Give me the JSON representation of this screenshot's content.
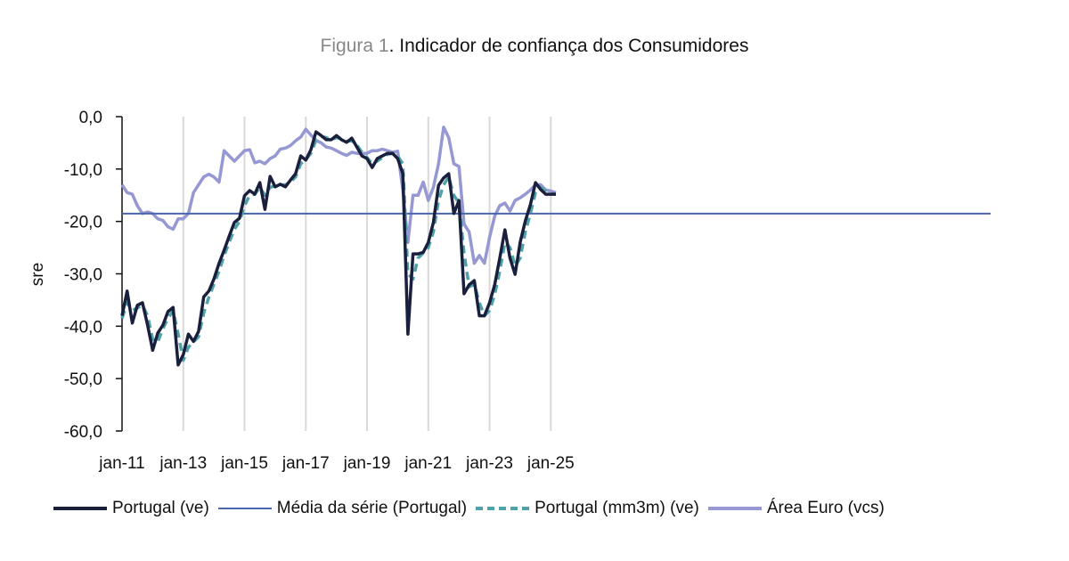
{
  "title": {
    "prefix": "Figura 1",
    "text": ". Indicador de confiança dos Consumidores"
  },
  "chart_data": {
    "type": "line",
    "title": "Figura 1. Indicador de confiança dos Consumidores",
    "xlabel": "",
    "ylabel": "sre",
    "ylim": [
      -60,
      0
    ],
    "yticks": [
      0,
      -10,
      -20,
      -30,
      -40,
      -50,
      -60
    ],
    "ytick_labels": [
      "0,0",
      "-10,0",
      "-20,0",
      "-30,0",
      "-40,0",
      "-50,0",
      "-60,0"
    ],
    "xticks": [
      "jan-11",
      "jan-13",
      "jan-15",
      "jan-17",
      "jan-19",
      "jan-21",
      "jan-23",
      "jan-25"
    ],
    "x_start": "jan-11",
    "x_step_months": 2,
    "grid": "vertical",
    "legend_position": "bottom",
    "series": [
      {
        "name": "Portugal (ve)",
        "color": "#1a1f3d",
        "style": "solid",
        "values": [
          -38,
          -33.3,
          -39.4,
          -36,
          -35.5,
          -39.8,
          -44.6,
          -41.3,
          -39.8,
          -37.2,
          -36.4,
          -47.4,
          -45.4,
          -41.5,
          -42.9,
          -41,
          -34.4,
          -33.3,
          -31,
          -28,
          -25.5,
          -22.8,
          -20.2,
          -19.4,
          -15.1,
          -14.1,
          -14.8,
          -12.6,
          -17.7,
          -11.4,
          -13.4,
          -12.9,
          -13.4,
          -12.1,
          -10.9,
          -7.5,
          -8.3,
          -6.3,
          -2.9,
          -3.6,
          -4.4,
          -4.4,
          -3.6,
          -4.4,
          -4.9,
          -4.1,
          -5.8,
          -7.5,
          -8,
          -9.7,
          -8,
          -7.5,
          -7,
          -7,
          -8,
          -10.9,
          -41.5,
          -26.2,
          -26.2,
          -25.9,
          -24,
          -20.2,
          -13.1,
          -11.7,
          -10.9,
          -18.5,
          -16,
          -33.8,
          -32.1,
          -31.3,
          -38,
          -38,
          -35.5,
          -32.1,
          -27,
          -21.6,
          -27,
          -30.1,
          -24,
          -19.9,
          -16.8,
          -12.6,
          -13.9,
          -14.8,
          -14.8,
          -14.8
        ]
      },
      {
        "name": "Média da série (Portugal)",
        "color": "#4a66ac",
        "style": "solid",
        "constant": -18.5
      },
      {
        "name": "Portugal (mm3m) (ve)",
        "color": "#4ea3a8",
        "style": "dashed",
        "values": [
          -38.5,
          -35.5,
          -37,
          -36.5,
          -36,
          -38,
          -42.5,
          -43,
          -40.5,
          -38.5,
          -37,
          -41.5,
          -46.5,
          -44,
          -43,
          -42,
          -37.5,
          -34.5,
          -32,
          -29.5,
          -26.5,
          -24,
          -21.5,
          -20,
          -17,
          -15,
          -14.8,
          -13.5,
          -15,
          -13.5,
          -13.2,
          -13,
          -13,
          -12.5,
          -11.5,
          -9,
          -8.2,
          -7,
          -4.5,
          -3.8,
          -4,
          -4.4,
          -4,
          -4.3,
          -4.7,
          -4.6,
          -5.4,
          -6.8,
          -7.8,
          -9,
          -8.5,
          -7.8,
          -7.2,
          -7,
          -7.5,
          -9,
          -30,
          -31,
          -27,
          -26,
          -25,
          -22,
          -16,
          -13,
          -11.5,
          -15,
          -16.5,
          -26,
          -32.5,
          -32,
          -35.5,
          -38,
          -37,
          -34,
          -29.5,
          -24,
          -25,
          -28.5,
          -27,
          -22,
          -18.5,
          -14.5,
          -13.5,
          -14.2,
          -14.7,
          -14.8
        ]
      },
      {
        "name": "Área Euro (vcs)",
        "color": "#9598d2",
        "style": "solid",
        "values": [
          -13,
          -14.5,
          -14.8,
          -17,
          -18.5,
          -18.2,
          -18.5,
          -19.5,
          -19.8,
          -21,
          -21.5,
          -19.5,
          -19.5,
          -18.5,
          -14.5,
          -13,
          -11.5,
          -11,
          -11.5,
          -12.5,
          -6.5,
          -7.5,
          -8.5,
          -7.5,
          -6.5,
          -6.3,
          -8.8,
          -8.5,
          -9,
          -8,
          -7.5,
          -6.2,
          -6,
          -5.5,
          -4.6,
          -3.9,
          -2.4,
          -3.5,
          -4.5,
          -5,
          -5.8,
          -6,
          -6.5,
          -7,
          -7.4,
          -6.8,
          -7,
          -7,
          -7,
          -6.5,
          -6.5,
          -6.2,
          -6.5,
          -6.8,
          -6.6,
          -14,
          -24,
          -15,
          -15,
          -12.5,
          -16,
          -13.5,
          -9,
          -2,
          -4,
          -9,
          -9.5,
          -20.5,
          -22,
          -28,
          -26.5,
          -28,
          -23,
          -19,
          -17,
          -16.5,
          -18,
          -16,
          -15.5,
          -14.8,
          -14,
          -13,
          -13,
          -14,
          -14.2,
          -14.5
        ]
      }
    ]
  },
  "legend": [
    {
      "label": "Portugal (ve)"
    },
    {
      "label": "Média da série (Portugal)"
    },
    {
      "label": "Portugal (mm3m) (ve)"
    },
    {
      "label": "Área Euro (vcs)"
    }
  ]
}
